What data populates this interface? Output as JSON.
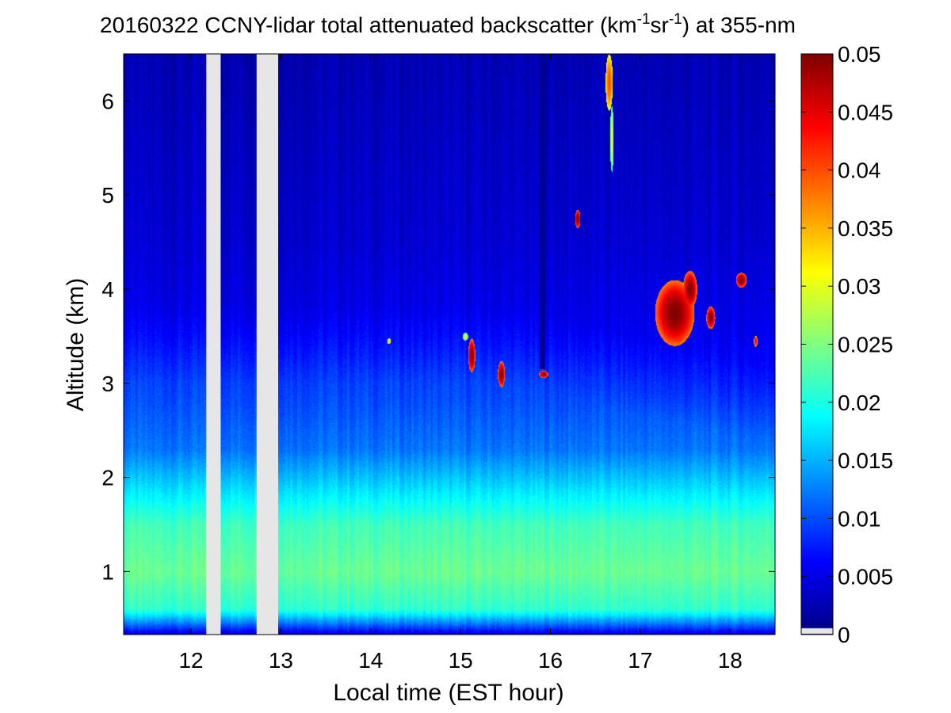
{
  "chart_data": {
    "type": "heatmap",
    "title_parts": {
      "prefix": "20160322 CCNY-lidar total attenuated backscatter (km",
      "sup1": "-1",
      "mid": "sr",
      "sup2": "-1",
      "suffix": ") at 355-nm"
    },
    "xlabel": "Local time (EST hour)",
    "ylabel": "Altitude (km)",
    "x_ticks": [
      "12",
      "13",
      "14",
      "15",
      "16",
      "17",
      "18"
    ],
    "y_ticks": [
      "1",
      "2",
      "3",
      "4",
      "5",
      "6"
    ],
    "xlim": [
      11.25,
      18.5
    ],
    "ylim": [
      0.33,
      6.5
    ],
    "colorbar": {
      "colormap": "jet",
      "range": [
        0,
        0.05
      ],
      "ticks": [
        "0",
        "0.005",
        "0.01",
        "0.015",
        "0.02",
        "0.025",
        "0.03",
        "0.035",
        "0.04",
        "0.045",
        "0.05"
      ]
    },
    "data_gaps_hours": [
      [
        12.17,
        12.33
      ],
      [
        12.73,
        12.97
      ]
    ],
    "background_profile": [
      {
        "alt": 0.33,
        "value": 0.004
      },
      {
        "alt": 0.45,
        "value": 0.012
      },
      {
        "alt": 0.6,
        "value": 0.021
      },
      {
        "alt": 1.0,
        "value": 0.024
      },
      {
        "alt": 1.5,
        "value": 0.022
      },
      {
        "alt": 1.9,
        "value": 0.017
      },
      {
        "alt": 2.3,
        "value": 0.012
      },
      {
        "alt": 2.8,
        "value": 0.01
      },
      {
        "alt": 3.5,
        "value": 0.008
      },
      {
        "alt": 4.5,
        "value": 0.0065
      },
      {
        "alt": 6.5,
        "value": 0.005
      }
    ],
    "cloud_features": [
      {
        "time": 17.38,
        "alt": 3.75,
        "dt": 0.22,
        "dalt": 0.35,
        "value": 0.05
      },
      {
        "time": 17.55,
        "alt": 4.0,
        "dt": 0.08,
        "dalt": 0.2,
        "value": 0.05
      },
      {
        "time": 17.78,
        "alt": 3.7,
        "dt": 0.05,
        "dalt": 0.12,
        "value": 0.05
      },
      {
        "time": 18.12,
        "alt": 4.1,
        "dt": 0.06,
        "dalt": 0.08,
        "value": 0.05
      },
      {
        "time": 18.28,
        "alt": 3.45,
        "dt": 0.02,
        "dalt": 0.06,
        "value": 0.045
      },
      {
        "time": 15.12,
        "alt": 3.3,
        "dt": 0.04,
        "dalt": 0.18,
        "value": 0.05
      },
      {
        "time": 15.45,
        "alt": 3.1,
        "dt": 0.04,
        "dalt": 0.14,
        "value": 0.05
      },
      {
        "time": 15.05,
        "alt": 3.5,
        "dt": 0.03,
        "dalt": 0.04,
        "value": 0.03
      },
      {
        "time": 15.92,
        "alt": 3.1,
        "dt": 0.05,
        "dalt": 0.04,
        "value": 0.05
      },
      {
        "time": 16.3,
        "alt": 4.75,
        "dt": 0.03,
        "dalt": 0.1,
        "value": 0.05
      },
      {
        "time": 16.65,
        "alt": 6.2,
        "dt": 0.04,
        "dalt": 0.3,
        "value": 0.04
      },
      {
        "time": 16.68,
        "alt": 5.6,
        "dt": 0.02,
        "dalt": 0.35,
        "value": 0.03
      },
      {
        "time": 14.2,
        "alt": 3.45,
        "dt": 0.02,
        "dalt": 0.03,
        "value": 0.035
      }
    ],
    "attenuated_column": {
      "time_start": 15.88,
      "time_end": 15.94,
      "alt_start": 3.15,
      "value": 0.001
    }
  }
}
